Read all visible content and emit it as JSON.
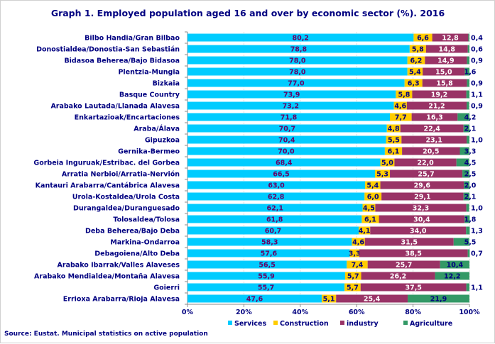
{
  "chart_data": {
    "type": "bar",
    "orientation": "horizontal",
    "stacked": true,
    "title": "Graph 1. Employed population aged 16 and over by economic sector (%). 2016",
    "source": "Source: Eustat. Municipal statistics on active population",
    "xlim": [
      0,
      100
    ],
    "xticks": [
      "0%",
      "20%",
      "40%",
      "60%",
      "80%",
      "100%"
    ],
    "grid": "vertical dashed",
    "legend_position": "bottom",
    "categories": [
      "Bilbo Handia/Gran Bilbao",
      "Donostialdea/Donostia-San Sebastián",
      "Bidasoa Beherea/Bajo Bidasoa",
      "Plentzia-Mungia",
      "Bizkaia",
      "Basque Country",
      "Arabako Lautada/Llanada Alavesa",
      "Enkartazioak/Encartaciones",
      "Araba/Álava",
      "Gipuzkoa",
      "Gernika-Bermeo",
      "Gorbeia Inguruak/Estribac. del Gorbea",
      "Arratia Nerbioi/Arratia-Nervión",
      "Kantauri Arabarra/Cantábrica Alavesa",
      "Urola-Kostaldea/Urola Costa",
      "Durangaldea/Duranguesado",
      "Tolosaldea/Tolosa",
      "Deba Beherea/Bajo Deba",
      "Markina-Ondarroa",
      "Debagoiena/Alto Deba",
      "Arabako Ibarrak/Valles Alaveses",
      "Arabako Mendialdea/Montaña Alavesa",
      "Goierri",
      "Errioxa Arabarra/Rioja Alavesa"
    ],
    "series": [
      {
        "name": "Services",
        "color": "#00CCFF",
        "label_color": "#660066",
        "values": [
          80.2,
          78.8,
          78.0,
          78.0,
          77.0,
          73.9,
          73.2,
          71.8,
          70.7,
          70.4,
          70.0,
          68.4,
          66.5,
          63.0,
          62.8,
          62.1,
          61.8,
          60.7,
          58.3,
          57.6,
          56.5,
          55.9,
          55.7,
          47.6
        ]
      },
      {
        "name": "Construction",
        "color": "#FFCC00",
        "label_color": "#000080",
        "values": [
          6.6,
          5.8,
          6.2,
          5.4,
          6.3,
          5.8,
          4.6,
          7.7,
          4.8,
          5.5,
          6.1,
          5.0,
          5.3,
          5.4,
          6.0,
          4.5,
          6.1,
          4.1,
          4.6,
          3.3,
          7.4,
          5.7,
          5.7,
          5.1
        ]
      },
      {
        "name": "industry",
        "color": "#993366",
        "label_color": "#FFFFFF",
        "values": [
          12.8,
          14.8,
          14.9,
          15.0,
          15.8,
          19.2,
          21.2,
          16.3,
          22.4,
          23.1,
          20.5,
          22.0,
          25.7,
          29.6,
          29.1,
          32.3,
          30.4,
          34.0,
          31.5,
          38.5,
          25.7,
          26.2,
          37.5,
          25.4
        ]
      },
      {
        "name": "Agriculture",
        "color": "#339966",
        "label_color": "#000080",
        "values": [
          0.4,
          0.6,
          0.9,
          1.6,
          0.9,
          1.1,
          0.9,
          4.2,
          2.1,
          1.0,
          3.3,
          4.5,
          2.5,
          2.0,
          2.1,
          1.0,
          1.8,
          1.3,
          5.5,
          0.7,
          10.4,
          12.2,
          1.1,
          21.9
        ]
      }
    ]
  }
}
